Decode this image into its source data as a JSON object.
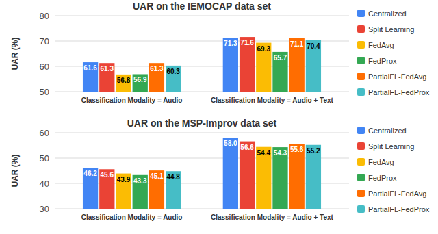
{
  "chart_data": [
    {
      "type": "bar",
      "title": "UAR on the IEMOCAP data set",
      "y_label": "UAR (%)",
      "categories": [
        "Classification Modality = Audio",
        "Classification Modality = Audio + Text"
      ],
      "series": [
        {
          "name": "Centralized",
          "color": "#4285f4",
          "values": [
            61.6,
            71.3
          ]
        },
        {
          "name": "Split Learning",
          "color": "#ea4335",
          "values": [
            61.3,
            71.6
          ]
        },
        {
          "name": "FedAvg",
          "color": "#fbbc04",
          "values": [
            56.8,
            69.3
          ]
        },
        {
          "name": "FedProx",
          "color": "#34a853",
          "values": [
            56.9,
            65.7
          ]
        },
        {
          "name": "PartialFL-FedAvg",
          "color": "#ff6d01",
          "values": [
            61.3,
            71.1
          ]
        },
        {
          "name": "PartialFL-FedProx",
          "color": "#46bdc6",
          "values": [
            60.3,
            70.4
          ]
        }
      ],
      "ylim": [
        50,
        80
      ],
      "yticks": [
        50,
        60,
        70,
        80
      ],
      "grid": true,
      "legend": "right",
      "data_labels": true
    },
    {
      "type": "bar",
      "title": "UAR on the MSP-Improv data set",
      "y_label": "UAR (%)",
      "categories": [
        "Classification Modality = Audio",
        "Classification Modality = Audio + Text"
      ],
      "series": [
        {
          "name": "Centralized",
          "color": "#4285f4",
          "values": [
            46.2,
            58.0
          ],
          "value_labels": [
            "46.2",
            "58.0"
          ]
        },
        {
          "name": "Split Learning",
          "color": "#ea4335",
          "values": [
            45.6,
            56.6
          ]
        },
        {
          "name": "FedAvg",
          "color": "#fbbc04",
          "values": [
            43.9,
            54.4
          ]
        },
        {
          "name": "FedProx",
          "color": "#34a853",
          "values": [
            43.3,
            54.3
          ]
        },
        {
          "name": "PartialFL-FedAvg",
          "color": "#ff6d01",
          "values": [
            45.1,
            55.6
          ]
        },
        {
          "name": "PartialFL-FedProx",
          "color": "#46bdc6",
          "values": [
            44.8,
            55.2
          ]
        }
      ],
      "ylim": [
        30,
        60
      ],
      "yticks": [
        30,
        40,
        50,
        60
      ],
      "grid": true,
      "legend": "right",
      "data_labels": true
    }
  ]
}
